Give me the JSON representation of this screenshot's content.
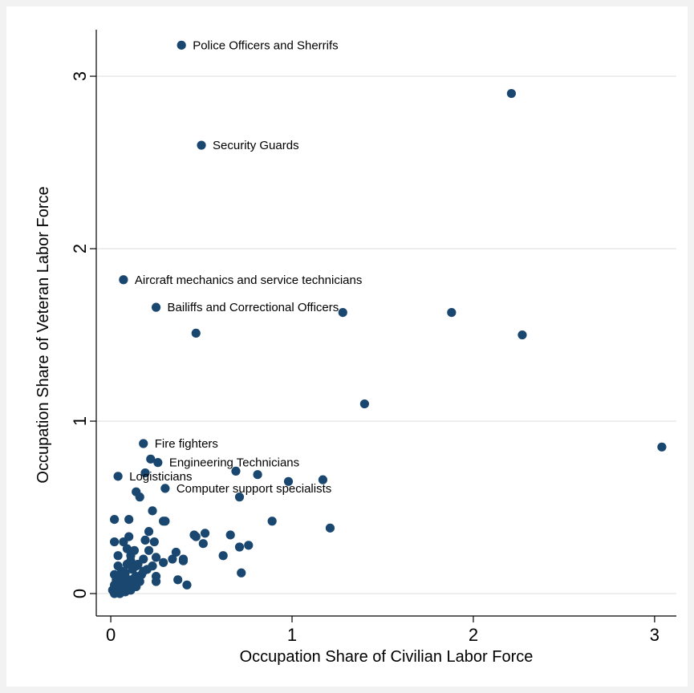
{
  "chart_data": {
    "type": "scatter",
    "title": "",
    "xlabel": "Occupation Share of Civilian Labor Force",
    "ylabel": "Occupation Share of Veteran Labor Force",
    "xlim": [
      -0.08,
      3.12
    ],
    "ylim": [
      -0.13,
      3.27
    ],
    "xticks": [
      0,
      1,
      2,
      3
    ],
    "yticks": [
      0,
      1,
      2,
      3
    ],
    "grid": "horizontal",
    "marker_color": "#1a476f",
    "labeled_points": [
      {
        "label": "Police Officers and Sherrifs",
        "x": 0.39,
        "y": 3.18
      },
      {
        "label": "Security Guards",
        "x": 0.5,
        "y": 2.6
      },
      {
        "label": "Aircraft mechanics and service technicians",
        "x": 0.07,
        "y": 1.82
      },
      {
        "label": "Bailiffs and Correctional Officers",
        "x": 0.25,
        "y": 1.66
      },
      {
        "label": "Fire fighters",
        "x": 0.18,
        "y": 0.87
      },
      {
        "label": "Engineering Technicians",
        "x": 0.26,
        "y": 0.76
      },
      {
        "label": "Logisticians",
        "x": 0.04,
        "y": 0.68
      },
      {
        "label": "Computer support specialists",
        "x": 0.3,
        "y": 0.61
      }
    ],
    "points": [
      {
        "x": 2.21,
        "y": 2.9
      },
      {
        "x": 0.47,
        "y": 1.51
      },
      {
        "x": 1.28,
        "y": 1.63
      },
      {
        "x": 1.88,
        "y": 1.63
      },
      {
        "x": 2.27,
        "y": 1.5
      },
      {
        "x": 1.4,
        "y": 1.1
      },
      {
        "x": 3.04,
        "y": 0.85
      },
      {
        "x": 0.22,
        "y": 0.78
      },
      {
        "x": 0.19,
        "y": 0.7
      },
      {
        "x": 0.69,
        "y": 0.71
      },
      {
        "x": 0.81,
        "y": 0.69
      },
      {
        "x": 0.98,
        "y": 0.65
      },
      {
        "x": 1.17,
        "y": 0.66
      },
      {
        "x": 0.71,
        "y": 0.56
      },
      {
        "x": 0.14,
        "y": 0.59
      },
      {
        "x": 0.16,
        "y": 0.56
      },
      {
        "x": 0.23,
        "y": 0.48
      },
      {
        "x": 0.02,
        "y": 0.43
      },
      {
        "x": 0.1,
        "y": 0.43
      },
      {
        "x": 0.29,
        "y": 0.42
      },
      {
        "x": 0.3,
        "y": 0.42
      },
      {
        "x": 0.89,
        "y": 0.42
      },
      {
        "x": 1.21,
        "y": 0.38
      },
      {
        "x": 0.21,
        "y": 0.36
      },
      {
        "x": 0.46,
        "y": 0.34
      },
      {
        "x": 0.47,
        "y": 0.33
      },
      {
        "x": 0.52,
        "y": 0.35
      },
      {
        "x": 0.66,
        "y": 0.34
      },
      {
        "x": 0.1,
        "y": 0.33
      },
      {
        "x": 0.19,
        "y": 0.31
      },
      {
        "x": 0.24,
        "y": 0.3
      },
      {
        "x": 0.02,
        "y": 0.3
      },
      {
        "x": 0.07,
        "y": 0.3
      },
      {
        "x": 0.51,
        "y": 0.29
      },
      {
        "x": 0.71,
        "y": 0.27
      },
      {
        "x": 0.76,
        "y": 0.28
      },
      {
        "x": 0.09,
        "y": 0.26
      },
      {
        "x": 0.13,
        "y": 0.25
      },
      {
        "x": 0.21,
        "y": 0.25
      },
      {
        "x": 0.36,
        "y": 0.24
      },
      {
        "x": 0.62,
        "y": 0.22
      },
      {
        "x": 0.04,
        "y": 0.22
      },
      {
        "x": 0.11,
        "y": 0.22
      },
      {
        "x": 0.25,
        "y": 0.21
      },
      {
        "x": 0.34,
        "y": 0.2
      },
      {
        "x": 0.4,
        "y": 0.2
      },
      {
        "x": 0.4,
        "y": 0.19
      },
      {
        "x": 0.29,
        "y": 0.18
      },
      {
        "x": 0.15,
        "y": 0.17
      },
      {
        "x": 0.23,
        "y": 0.16
      },
      {
        "x": 0.04,
        "y": 0.16
      },
      {
        "x": 0.12,
        "y": 0.14
      },
      {
        "x": 0.18,
        "y": 0.13
      },
      {
        "x": 0.72,
        "y": 0.12
      },
      {
        "x": 0.08,
        "y": 0.12
      },
      {
        "x": 0.02,
        "y": 0.11
      },
      {
        "x": 0.25,
        "y": 0.1
      },
      {
        "x": 0.14,
        "y": 0.1
      },
      {
        "x": 0.06,
        "y": 0.09
      },
      {
        "x": 0.37,
        "y": 0.08
      },
      {
        "x": 0.1,
        "y": 0.08
      },
      {
        "x": 0.03,
        "y": 0.08
      },
      {
        "x": 0.25,
        "y": 0.07
      },
      {
        "x": 0.16,
        "y": 0.07
      },
      {
        "x": 0.42,
        "y": 0.05
      },
      {
        "x": 0.07,
        "y": 0.06
      },
      {
        "x": 0.12,
        "y": 0.05
      },
      {
        "x": 0.02,
        "y": 0.05
      },
      {
        "x": 0.05,
        "y": 0.04
      },
      {
        "x": 0.09,
        "y": 0.04
      },
      {
        "x": 0.14,
        "y": 0.04
      },
      {
        "x": 0.03,
        "y": 0.03
      },
      {
        "x": 0.07,
        "y": 0.02
      },
      {
        "x": 0.11,
        "y": 0.02
      },
      {
        "x": 0.01,
        "y": 0.02
      },
      {
        "x": 0.04,
        "y": 0.01
      },
      {
        "x": 0.08,
        "y": 0.01
      },
      {
        "x": 0.02,
        "y": 0.0
      },
      {
        "x": 0.05,
        "y": 0.0
      },
      {
        "x": 0.13,
        "y": 0.09
      },
      {
        "x": 0.17,
        "y": 0.11
      },
      {
        "x": 0.2,
        "y": 0.14
      },
      {
        "x": 0.06,
        "y": 0.13
      },
      {
        "x": 0.09,
        "y": 0.17
      },
      {
        "x": 0.11,
        "y": 0.19
      },
      {
        "x": 0.18,
        "y": 0.2
      },
      {
        "x": 0.14,
        "y": 0.16
      }
    ]
  }
}
